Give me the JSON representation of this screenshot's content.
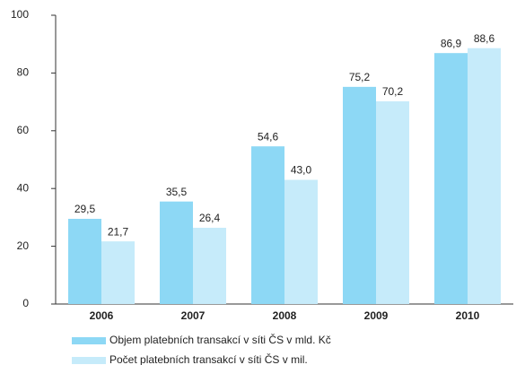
{
  "chart_data": {
    "type": "bar",
    "categories": [
      "2006",
      "2007",
      "2008",
      "2009",
      "2010"
    ],
    "series": [
      {
        "name": "Objem platebních transakcí v síti ČS v mld. Kč",
        "color": "#8dd8f5",
        "values": [
          29.5,
          35.5,
          54.6,
          75.2,
          86.9
        ],
        "value_labels": [
          "29,5",
          "35,5",
          "54,6",
          "75,2",
          "86,9"
        ]
      },
      {
        "name": "Počet platebních transakcí v síti ČS v mil.",
        "color": "#c6ebfa",
        "values": [
          21.7,
          26.4,
          43.0,
          70.2,
          88.6
        ],
        "value_labels": [
          "21,7",
          "26,4",
          "43,0",
          "70,2",
          "88,6"
        ]
      }
    ],
    "ylim": [
      0,
      100
    ],
    "yticks": [
      0,
      20,
      40,
      60,
      80,
      100
    ],
    "grid": false
  }
}
